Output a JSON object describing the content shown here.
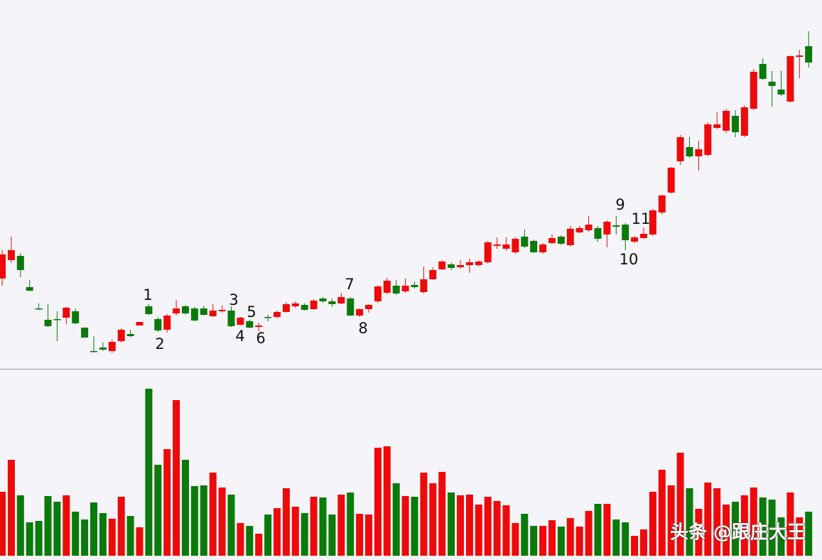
{
  "chart_data": {
    "type": "candlestick",
    "open": [
      128,
      154,
      160,
      116,
      86,
      70,
      71,
      73,
      82,
      59,
      26,
      31,
      26,
      40,
      50,
      62,
      89,
      71,
      56,
      79,
      89,
      86,
      86,
      75,
      82,
      83,
      63,
      68,
      60,
      74,
      74,
      81,
      89,
      91,
      85,
      100,
      96,
      93,
      100,
      76,
      85,
      96,
      108,
      118,
      110,
      119,
      109,
      127,
      141,
      148,
      144,
      147,
      147,
      151,
      174,
      170,
      165,
      187,
      181,
      165,
      178,
      187,
      175,
      193,
      196,
      199,
      190,
      203,
      204,
      180,
      185,
      190,
      221,
      249,
      293,
      313,
      300,
      302,
      340,
      336,
      357,
      329,
      367,
      430,
      405,
      394,
      377,
      440,
      455
    ],
    "close": [
      162,
      168,
      140,
      111,
      85,
      61,
      70,
      87,
      65,
      45,
      25,
      28,
      39,
      56,
      47,
      67,
      78,
      55,
      76,
      86,
      79,
      69,
      77,
      83,
      84,
      61,
      73,
      59,
      62,
      73,
      81,
      92,
      93,
      84,
      97,
      96,
      92,
      102,
      76,
      85,
      91,
      117,
      125,
      107,
      118,
      116,
      127,
      140,
      152,
      143,
      147,
      151,
      152,
      179,
      176,
      176,
      184,
      173,
      165,
      176,
      185,
      177,
      198,
      199,
      204,
      184,
      208,
      201,
      182,
      186,
      191,
      224,
      245,
      284,
      327,
      300,
      310,
      345,
      345,
      364,
      334,
      369,
      419,
      409,
      399,
      387,
      441,
      442,
      432
    ],
    "high": [
      168,
      187,
      164,
      126,
      93,
      92,
      82,
      88,
      86,
      59,
      47,
      38,
      42,
      58,
      56,
      67,
      92,
      74,
      78,
      98,
      91,
      88,
      90,
      92,
      90,
      89,
      74,
      70,
      66,
      77,
      83,
      95,
      96,
      93,
      99,
      102,
      100,
      108,
      102,
      86,
      92,
      118,
      129,
      126,
      128,
      124,
      145,
      144,
      154,
      150,
      154,
      156,
      154,
      181,
      186,
      186,
      186,
      197,
      183,
      178,
      190,
      189,
      202,
      202,
      216,
      202,
      210,
      216,
      206,
      188,
      200,
      226,
      246,
      285,
      330,
      327,
      322,
      348,
      362,
      367,
      365,
      372,
      423,
      438,
      420,
      420,
      442,
      450,
      476
    ],
    "low": [
      118,
      150,
      130,
      110,
      84,
      60,
      40,
      64,
      64,
      45,
      25,
      26,
      23,
      38,
      46,
      62,
      77,
      53,
      52,
      76,
      77,
      68,
      76,
      74,
      80,
      60,
      62,
      58,
      54,
      68,
      72,
      80,
      87,
      83,
      84,
      94,
      88,
      92,
      75,
      74,
      80,
      94,
      106,
      105,
      108,
      114,
      107,
      126,
      140,
      140,
      142,
      136,
      145,
      149,
      170,
      167,
      163,
      171,
      164,
      163,
      176,
      175,
      173,
      192,
      194,
      180,
      172,
      190,
      168,
      178,
      184,
      188,
      218,
      248,
      288,
      298,
      280,
      300,
      338,
      333,
      327,
      327,
      365,
      407,
      370,
      385,
      376,
      410,
      425
    ],
    "volume": [
      90,
      135,
      85,
      47,
      49,
      84,
      76,
      85,
      62,
      51,
      75,
      60,
      52,
      83,
      56,
      40,
      235,
      128,
      150,
      219,
      135,
      98,
      99,
      117,
      96,
      86,
      46,
      42,
      31,
      58,
      67,
      95,
      69,
      60,
      83,
      82,
      58,
      86,
      89,
      59,
      58,
      152,
      154,
      102,
      84,
      83,
      117,
      102,
      118,
      89,
      85,
      86,
      72,
      83,
      77,
      71,
      46,
      59,
      42,
      42,
      50,
      41,
      53,
      41,
      63,
      73,
      73,
      51,
      47,
      28,
      37,
      90,
      121,
      99,
      145,
      95,
      66,
      103,
      95,
      72,
      76,
      85,
      96,
      82,
      79,
      54,
      89,
      54,
      62
    ],
    "ylim": [
      0,
      520
    ],
    "volume_ylim": [
      0,
      262
    ],
    "colors": {
      "up": "#ee0a0a",
      "down": "#0a7a0a"
    },
    "annotations": [
      "1",
      "2",
      "3",
      "4",
      "5",
      "6",
      "7",
      "8",
      "9",
      "10",
      "11"
    ],
    "watermark": "头条 @跟庄大王"
  }
}
